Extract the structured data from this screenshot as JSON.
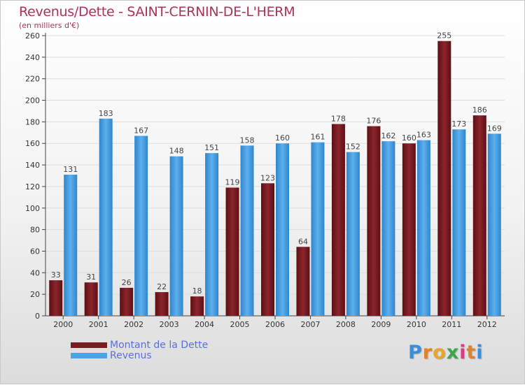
{
  "title": "Revenus/Dette - SAINT-CERNIN-DE-L'HERM",
  "subtitle": "(en milliers d'€)",
  "legend": {
    "debt_label": "Montant de la Dette",
    "revenue_label": "Revenus"
  },
  "logo": {
    "text": "Proxiti",
    "letters": [
      "P",
      "r",
      "o",
      "x",
      "i",
      "t",
      "i"
    ],
    "colors": [
      "#3a8fd8",
      "#e0822a",
      "#e8a52a",
      "#3aa84a",
      "#d93a8a",
      "#e0822a",
      "#3a8fd8"
    ]
  },
  "colors": {
    "debt": "#7a1d22",
    "revenue": "#4aa3e6",
    "title": "#b0305a",
    "legend_text": "#5a6ee0"
  },
  "chart_data": {
    "type": "bar",
    "title": "Revenus/Dette - SAINT-CERNIN-DE-L'HERM",
    "subtitle": "(en milliers d'€)",
    "categories": [
      "2000",
      "2001",
      "2002",
      "2003",
      "2004",
      "2005",
      "2006",
      "2007",
      "2008",
      "2009",
      "2010",
      "2011",
      "2012"
    ],
    "series": [
      {
        "name": "Montant de la Dette",
        "values": [
          33,
          31,
          26,
          22,
          18,
          119,
          123,
          64,
          178,
          176,
          160,
          255,
          186
        ]
      },
      {
        "name": "Revenus",
        "values": [
          131,
          183,
          167,
          148,
          151,
          158,
          160,
          161,
          152,
          162,
          163,
          173,
          169
        ]
      }
    ],
    "ylim": [
      0,
      260
    ],
    "yticks": [
      0,
      20,
      40,
      60,
      80,
      100,
      120,
      140,
      160,
      180,
      200,
      220,
      240,
      260
    ],
    "grid": true,
    "legend_position": "bottom-left"
  }
}
